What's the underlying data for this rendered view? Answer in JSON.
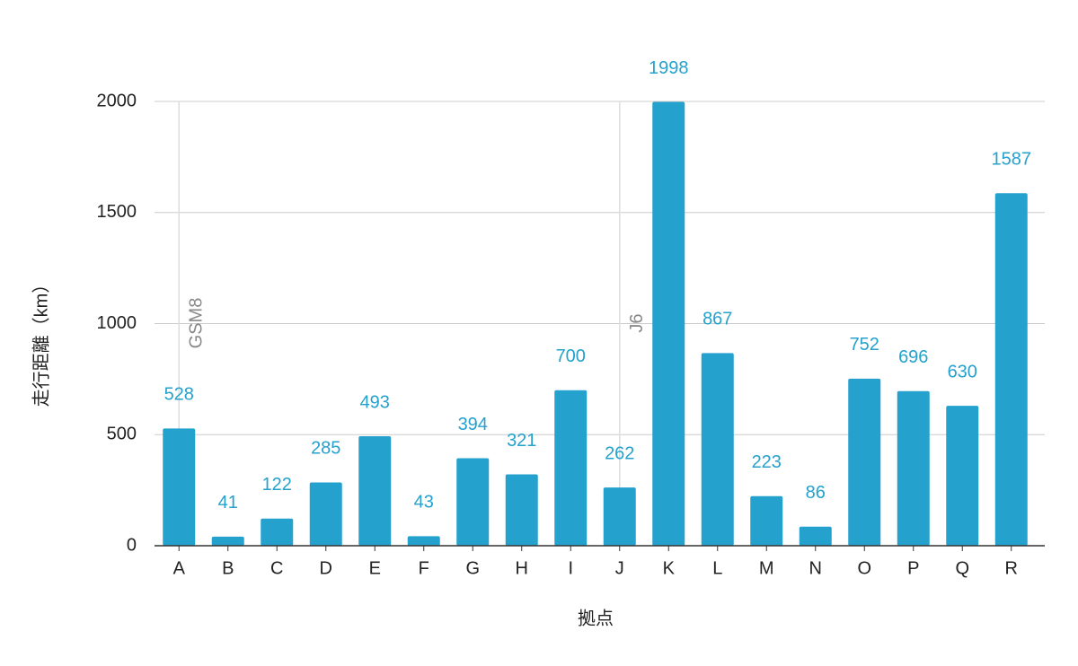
{
  "chart_data": {
    "type": "bar",
    "x_label": "拠点",
    "y_label": "走行距離（km）",
    "categories": [
      "A",
      "B",
      "C",
      "D",
      "E",
      "F",
      "G",
      "H",
      "I",
      "J",
      "K",
      "L",
      "M",
      "N",
      "O",
      "P",
      "Q",
      "R"
    ],
    "values": [
      528,
      41,
      122,
      285,
      493,
      43,
      394,
      321,
      700,
      262,
      1998,
      867,
      223,
      86,
      752,
      696,
      630,
      1587
    ],
    "color": "#24a1cd",
    "label_color": "#24a1cd",
    "ylim": [
      0,
      2000
    ],
    "yticks": [
      0,
      500,
      1000,
      1500,
      2000
    ],
    "grid": true,
    "annotations": [
      {
        "category": "A",
        "text": "GSM8"
      },
      {
        "category": "J",
        "text": "J6"
      }
    ]
  }
}
